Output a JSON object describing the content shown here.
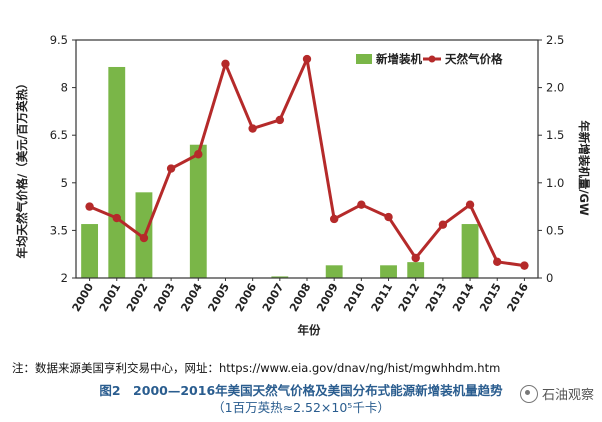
{
  "chart_data": {
    "type": "bar+line",
    "x": [
      "2000",
      "2001",
      "2002",
      "2003",
      "2004",
      "2005",
      "2006",
      "2007",
      "2008",
      "2009",
      "2010",
      "2011",
      "2012",
      "2013",
      "2014",
      "2015",
      "2016"
    ],
    "bar_series": {
      "name": "新增装机",
      "color": "#7ab648",
      "values": [
        3.7,
        8.65,
        4.7,
        0,
        6.2,
        0,
        0,
        2.05,
        0,
        2.4,
        0,
        2.4,
        2.5,
        0,
        3.7,
        0,
        0
      ]
    },
    "line_series": {
      "name": "天然气价格",
      "color": "#b52a2a",
      "values": [
        0.75,
        0.63,
        0.42,
        1.15,
        1.3,
        2.25,
        1.57,
        1.66,
        2.3,
        0.62,
        0.77,
        0.64,
        0.21,
        0.56,
        0.77,
        0.17,
        0.13
      ]
    },
    "y_left": {
      "label": "年均天然气价格/（美元/百万英热）",
      "min": 2,
      "max": 9.5,
      "ticks": [
        "9.5",
        "8",
        "6.5",
        "5",
        "3.5",
        "2"
      ]
    },
    "y_right": {
      "label": "年新增装机量/GW",
      "min": 0,
      "max": 2.5,
      "ticks": [
        "2.5",
        "2.0",
        "1.5",
        "1.0",
        "0.5",
        "0"
      ]
    },
    "xlabel": "年份",
    "legend_position": "top-right",
    "grid": false
  },
  "note": "注：数据来源美国亨利交易中心，网址：https://www.eia.gov/dnav/ng/hist/mgwhhdm.htm",
  "caption": {
    "title": "图2　2000—2016年美国天然气价格及美国分布式能源新增装机量趋势",
    "subtitle": "（1百万英热≈2.52×10⁵千卡）"
  },
  "watermark": "石油观察"
}
